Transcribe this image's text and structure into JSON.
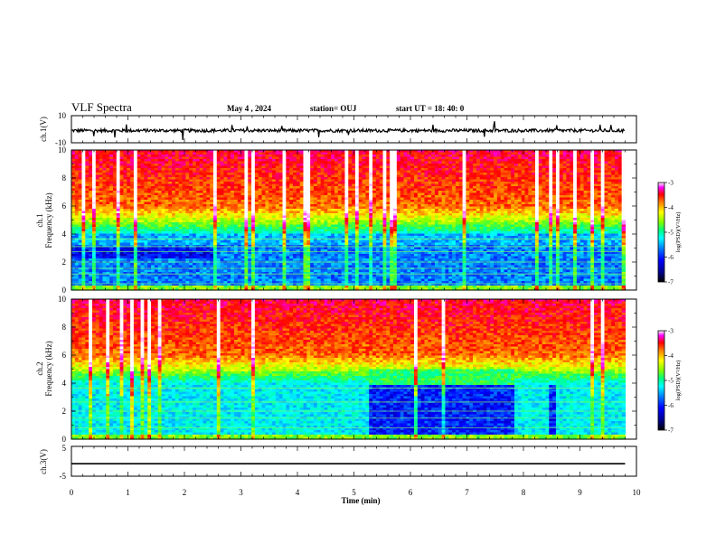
{
  "header": {
    "title": "VLF Spectra",
    "date": "May 4  , 2024",
    "station": "station= OUJ",
    "start": "start  UT =   18: 40: 0"
  },
  "chart_data": [
    {
      "type": "line",
      "panel": "ch1-waveform",
      "ylabel": "ch.1(V)",
      "ylim": [
        -10,
        10
      ],
      "yticks": [
        "10",
        "-10"
      ],
      "xlim": [
        0,
        10
      ],
      "series": [
        {
          "baseline": -1,
          "noise_amplitude": 1.2
        }
      ]
    },
    {
      "type": "heatmap",
      "panel": "ch1-spectrogram",
      "ylabel": "ch.1\nFrequency (kHz)",
      "ylabel_lines": [
        "ch.1",
        "Frequency (kHz)"
      ],
      "ylim": [
        0,
        10
      ],
      "yticks": [
        "0",
        "2",
        "4",
        "6",
        "8",
        "10"
      ],
      "xlim": [
        0,
        9.8
      ],
      "colorbar": {
        "label": "log(PSD)(V²/Hz)",
        "range": [
          -7,
          -3
        ],
        "ticks": [
          "-3",
          "-4",
          "-5",
          "-6",
          "-7"
        ]
      },
      "features": {
        "quiet_band_kHz": [
          0.3,
          5.0
        ],
        "lines_kHz": [
          0.45,
          1.15,
          1.55,
          2.0,
          2.75,
          3.1,
          3.65
        ]
      }
    },
    {
      "type": "heatmap",
      "panel": "ch2-spectrogram",
      "ylabel": "ch.2\nFrequency (kHz)",
      "ylabel_lines": [
        "ch.2",
        "Frequency (kHz)"
      ],
      "ylim": [
        0,
        10
      ],
      "yticks": [
        "0",
        "2",
        "4",
        "6",
        "8",
        "10"
      ],
      "xlim": [
        0,
        9.8
      ],
      "colorbar": {
        "label": "log(PSD)(V²/Hz)",
        "range": [
          -7,
          -3
        ],
        "ticks": [
          "-3",
          "-4",
          "-5",
          "-6",
          "-7"
        ]
      },
      "features": {
        "dark_region_min": [
          5.25,
          7.85
        ],
        "dark_stripe_min": [
          8.45,
          8.6
        ],
        "lines_kHz": [
          0.8,
          1.5,
          2.0,
          2.65,
          3.65
        ]
      }
    },
    {
      "type": "line",
      "panel": "ch3-waveform",
      "ylabel": "ch.3(V)",
      "ylim": [
        -5,
        5
      ],
      "yticks": [
        "5",
        "-5"
      ],
      "xlim": [
        0,
        10
      ],
      "series": [
        {
          "baseline": -0.8
        }
      ]
    }
  ],
  "xaxis": {
    "label": "Time  (min)",
    "ticks": [
      "0",
      "1",
      "2",
      "3",
      "4",
      "5",
      "6",
      "7",
      "8",
      "9",
      "10"
    ],
    "range": [
      0,
      10
    ]
  },
  "colors": {
    "colormap": [
      "#000090",
      "#0000ff",
      "#0080ff",
      "#00ffff",
      "#00ff80",
      "#80ff00",
      "#ffff00",
      "#ff8000",
      "#ff0000",
      "#ff00ff",
      "#ffffff"
    ],
    "line": "#000000"
  }
}
